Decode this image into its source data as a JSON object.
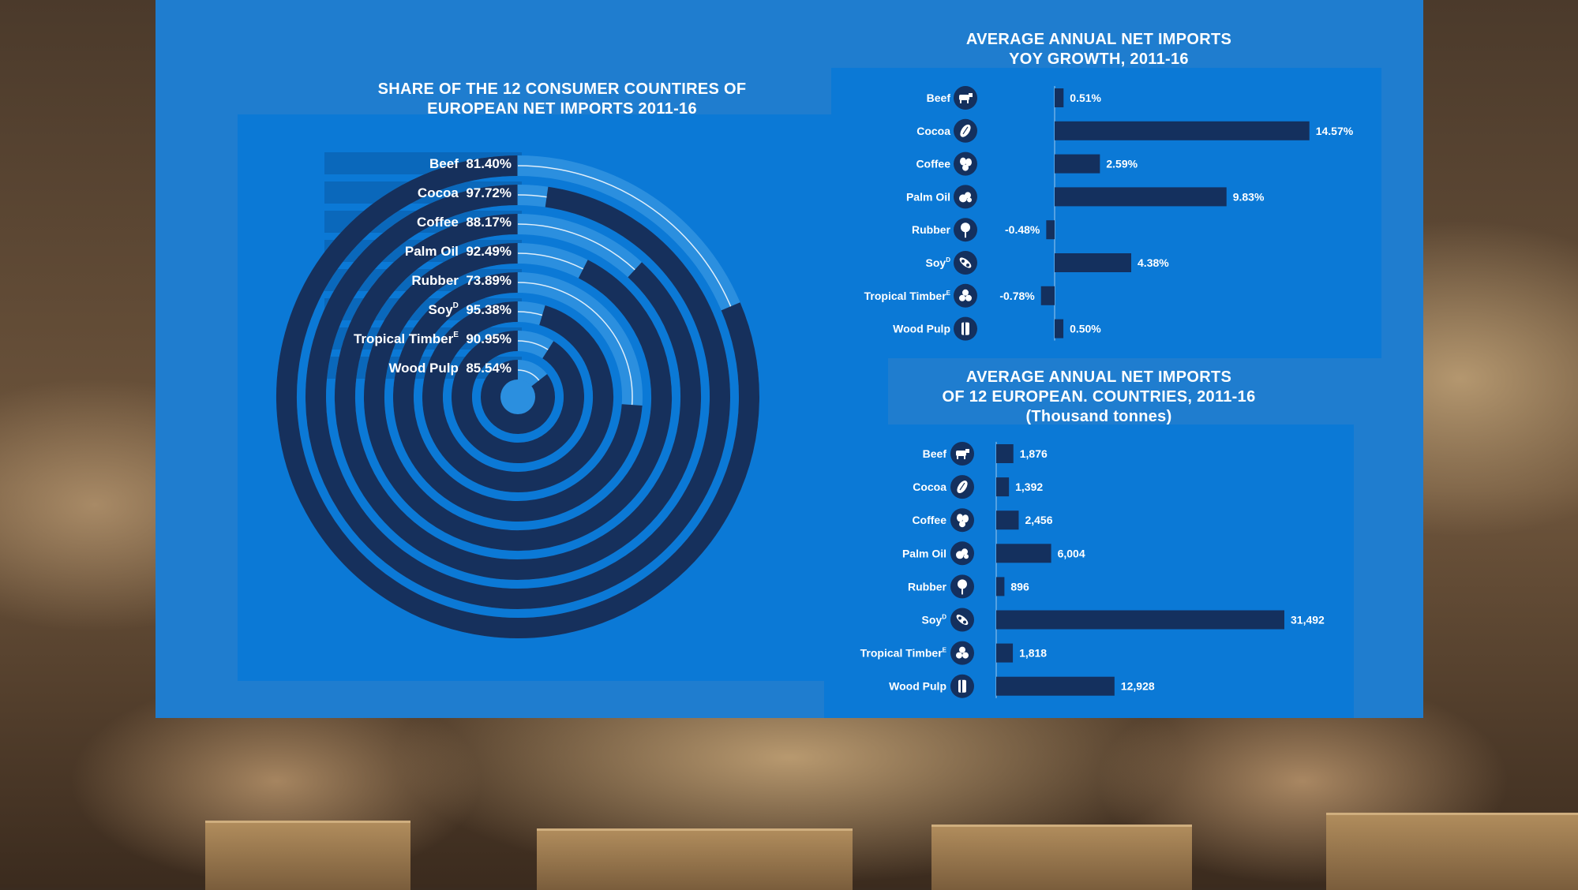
{
  "radial_chart": {
    "title_line1": "SHARE OF THE 12 CONSUMER COUNTIRES OF",
    "title_line2": "EUROPEAN NET IMPORTS 2011-16"
  },
  "growth_chart": {
    "title_line1": "AVERAGE ANNUAL NET IMPORTS",
    "title_line2": "YOY GROWTH, 2011-16"
  },
  "volume_chart": {
    "title_line1": "AVERAGE ANNUAL NET IMPORTS",
    "title_line2": "OF 12 EUROPEAN. COUNTRIES, 2011-16",
    "title_line3": "(Thousand tonnes)"
  },
  "colors": {
    "panel": "#1f7dcf",
    "plot_box": "#0b79d6",
    "bar": "#14305e",
    "ring_dark": "#16305c",
    "ring_track": "#2b8fdf",
    "label_bg": "#0a68bb",
    "icon_circle": "#14305e"
  },
  "chart_data": [
    {
      "type": "radial-bar",
      "categories": [
        {
          "name": "Beef",
          "sup": ""
        },
        {
          "name": "Cocoa",
          "sup": ""
        },
        {
          "name": "Coffee",
          "sup": ""
        },
        {
          "name": "Palm Oil",
          "sup": ""
        },
        {
          "name": "Rubber",
          "sup": ""
        },
        {
          "name": "Soy",
          "sup": "D"
        },
        {
          "name": "Tropical Timber",
          "sup": "E"
        },
        {
          "name": "Wood Pulp",
          "sup": ""
        }
      ],
      "values": [
        81.4,
        97.72,
        88.17,
        92.49,
        73.89,
        95.38,
        90.95,
        85.54
      ],
      "labels": [
        "81.40%",
        "97.72%",
        "88.17%",
        "92.49%",
        "73.89%",
        "95.38%",
        "90.95%",
        "85.54%"
      ],
      "max": 100
    },
    {
      "type": "bar",
      "orientation": "horizontal",
      "categories": [
        {
          "name": "Beef",
          "sup": "",
          "icon": "cow-icon"
        },
        {
          "name": "Cocoa",
          "sup": "",
          "icon": "cocoa-pod-icon"
        },
        {
          "name": "Coffee",
          "sup": "",
          "icon": "coffee-beans-icon"
        },
        {
          "name": "Palm Oil",
          "sup": "",
          "icon": "palm-fruit-icon"
        },
        {
          "name": "Rubber",
          "sup": "",
          "icon": "tree-icon"
        },
        {
          "name": "Soy",
          "sup": "D",
          "icon": "soybean-icon"
        },
        {
          "name": "Tropical Timber",
          "sup": "E",
          "icon": "logs-icon"
        },
        {
          "name": "Wood Pulp",
          "sup": "",
          "icon": "paper-roll-icon"
        }
      ],
      "values": [
        0.51,
        14.57,
        2.59,
        9.83,
        -0.48,
        4.38,
        -0.78,
        0.5
      ],
      "labels": [
        "0.51%",
        "14.57%",
        "2.59%",
        "9.83%",
        "-0.48%",
        "4.38%",
        "-0.78%",
        "0.50%"
      ]
    },
    {
      "type": "bar",
      "orientation": "horizontal",
      "categories": [
        {
          "name": "Beef",
          "sup": "",
          "icon": "cow-icon"
        },
        {
          "name": "Cocoa",
          "sup": "",
          "icon": "cocoa-pod-icon"
        },
        {
          "name": "Coffee",
          "sup": "",
          "icon": "coffee-beans-icon"
        },
        {
          "name": "Palm Oil",
          "sup": "",
          "icon": "palm-fruit-icon"
        },
        {
          "name": "Rubber",
          "sup": "",
          "icon": "tree-icon"
        },
        {
          "name": "Soy",
          "sup": "D",
          "icon": "soybean-icon"
        },
        {
          "name": "Tropical Timber",
          "sup": "E",
          "icon": "logs-icon"
        },
        {
          "name": "Wood Pulp",
          "sup": "",
          "icon": "paper-roll-icon"
        }
      ],
      "values": [
        1876,
        1392,
        2456,
        6004,
        896,
        31492,
        1818,
        12928
      ],
      "labels": [
        "1,876",
        "1,392",
        "2,456",
        "6,004",
        "896",
        "31,492",
        "1,818",
        "12,928"
      ]
    }
  ]
}
